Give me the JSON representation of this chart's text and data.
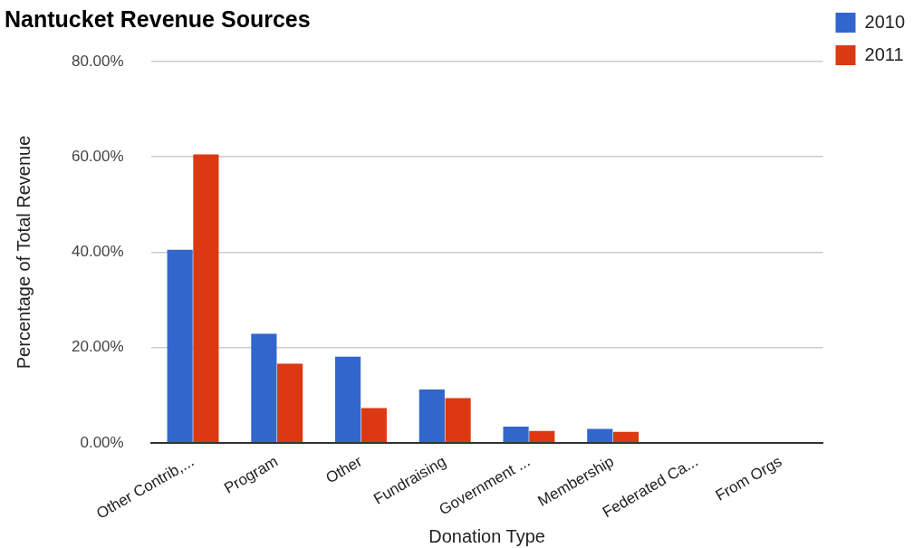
{
  "chart_data": {
    "type": "bar",
    "title": "Nantucket Revenue Sources",
    "xlabel": "Donation Type",
    "ylabel": "Percentage of Total Revenue",
    "categories": [
      "Other Contrib,...",
      "Program",
      "Other",
      "Fundraising",
      "Government ...",
      "Membership",
      "Federated Ca...",
      "From Orgs"
    ],
    "series": [
      {
        "name": "2010",
        "color": "#3366cc",
        "values": [
          40.5,
          22.9,
          18.1,
          11.2,
          3.4,
          2.9,
          0,
          0
        ]
      },
      {
        "name": "2011",
        "color": "#dc3912",
        "values": [
          60.5,
          16.6,
          7.3,
          9.4,
          2.5,
          2.3,
          0,
          0
        ]
      }
    ],
    "ylim": [
      0,
      80
    ],
    "yticks": [
      {
        "value": 0,
        "label": "0.00%"
      },
      {
        "value": 20,
        "label": "20.00%"
      },
      {
        "value": 40,
        "label": "40.00%"
      },
      {
        "value": 60,
        "label": "60.00%"
      },
      {
        "value": 80,
        "label": "80.00%"
      }
    ],
    "grid": "y",
    "legend": "top right"
  }
}
